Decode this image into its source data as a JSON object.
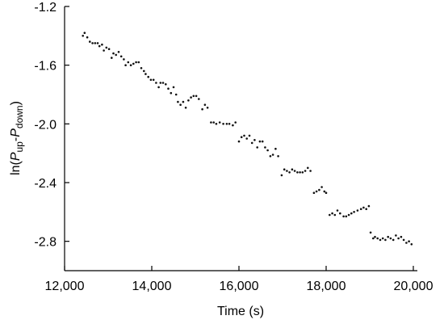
{
  "chart_data": {
    "type": "scatter",
    "title": "",
    "xlabel": "Time (s)",
    "ylabel": {
      "prefix": "ln(",
      "sym1": "P",
      "sub1": "up",
      "dash": "-",
      "sym2": "P",
      "sub2": "down",
      "suffix": ")"
    },
    "xlim": [
      12000,
      20000
    ],
    "ylim": [
      -3.0,
      -1.2
    ],
    "x_ticks": [
      12000,
      14000,
      16000,
      18000,
      20000
    ],
    "x_tick_labels": [
      "12,000",
      "14,000",
      "16,000",
      "18,000",
      "20,000"
    ],
    "y_ticks": [
      -1.2,
      -1.6,
      -2.0,
      -2.4,
      -2.8
    ],
    "y_tick_labels": [
      "-1.2",
      "-1.6",
      "-2.0",
      "-2.4",
      "-2.8"
    ],
    "grid": false,
    "marker_color": "#111111",
    "series": [
      {
        "points": [
          [
            12420,
            -1.4
          ],
          [
            12460,
            -1.38
          ],
          [
            12520,
            -1.41
          ],
          [
            12580,
            -1.44
          ],
          [
            12640,
            -1.45
          ],
          [
            12700,
            -1.45
          ],
          [
            12760,
            -1.45
          ],
          [
            12800,
            -1.47
          ],
          [
            12860,
            -1.46
          ],
          [
            12900,
            -1.5
          ],
          [
            12960,
            -1.48
          ],
          [
            13020,
            -1.49
          ],
          [
            13080,
            -1.55
          ],
          [
            13120,
            -1.52
          ],
          [
            13180,
            -1.53
          ],
          [
            13240,
            -1.51
          ],
          [
            13300,
            -1.54
          ],
          [
            13360,
            -1.56
          ],
          [
            13400,
            -1.6
          ],
          [
            13460,
            -1.58
          ],
          [
            13520,
            -1.6
          ],
          [
            13580,
            -1.59
          ],
          [
            13640,
            -1.58
          ],
          [
            13700,
            -1.58
          ],
          [
            13760,
            -1.62
          ],
          [
            13820,
            -1.64
          ],
          [
            13860,
            -1.66
          ],
          [
            13920,
            -1.68
          ],
          [
            13980,
            -1.7
          ],
          [
            14040,
            -1.7
          ],
          [
            14100,
            -1.72
          ],
          [
            14160,
            -1.75
          ],
          [
            14200,
            -1.72
          ],
          [
            14260,
            -1.72
          ],
          [
            14320,
            -1.73
          ],
          [
            14380,
            -1.76
          ],
          [
            14440,
            -1.79
          ],
          [
            14500,
            -1.75
          ],
          [
            14560,
            -1.8
          ],
          [
            14600,
            -1.85
          ],
          [
            14660,
            -1.87
          ],
          [
            14720,
            -1.85
          ],
          [
            14780,
            -1.89
          ],
          [
            14840,
            -1.84
          ],
          [
            14900,
            -1.82
          ],
          [
            14960,
            -1.81
          ],
          [
            15020,
            -1.81
          ],
          [
            15080,
            -1.83
          ],
          [
            15160,
            -1.9
          ],
          [
            15220,
            -1.87
          ],
          [
            15280,
            -1.89
          ],
          [
            15360,
            -1.99
          ],
          [
            15420,
            -1.99
          ],
          [
            15480,
            -2.0
          ],
          [
            15560,
            -1.99
          ],
          [
            15640,
            -2.0
          ],
          [
            15720,
            -2.0
          ],
          [
            15780,
            -2.0
          ],
          [
            15860,
            -2.01
          ],
          [
            15920,
            -1.99
          ],
          [
            16000,
            -2.12
          ],
          [
            16060,
            -2.09
          ],
          [
            16120,
            -2.08
          ],
          [
            16180,
            -2.1
          ],
          [
            16240,
            -2.08
          ],
          [
            16300,
            -2.13
          ],
          [
            16360,
            -2.11
          ],
          [
            16420,
            -2.16
          ],
          [
            16480,
            -2.12
          ],
          [
            16540,
            -2.12
          ],
          [
            16600,
            -2.16
          ],
          [
            16660,
            -2.18
          ],
          [
            16720,
            -2.22
          ],
          [
            16780,
            -2.21
          ],
          [
            16840,
            -2.17
          ],
          [
            16900,
            -2.22
          ],
          [
            16980,
            -2.35
          ],
          [
            17040,
            -2.31
          ],
          [
            17100,
            -2.32
          ],
          [
            17160,
            -2.33
          ],
          [
            17220,
            -2.31
          ],
          [
            17280,
            -2.32
          ],
          [
            17340,
            -2.33
          ],
          [
            17400,
            -2.33
          ],
          [
            17460,
            -2.33
          ],
          [
            17520,
            -2.32
          ],
          [
            17580,
            -2.3
          ],
          [
            17640,
            -2.32
          ],
          [
            17720,
            -2.47
          ],
          [
            17780,
            -2.46
          ],
          [
            17840,
            -2.45
          ],
          [
            17900,
            -2.43
          ],
          [
            17960,
            -2.46
          ],
          [
            18000,
            -2.47
          ],
          [
            18080,
            -2.62
          ],
          [
            18140,
            -2.61
          ],
          [
            18200,
            -2.62
          ],
          [
            18260,
            -2.59
          ],
          [
            18320,
            -2.61
          ],
          [
            18400,
            -2.63
          ],
          [
            18460,
            -2.63
          ],
          [
            18520,
            -2.62
          ],
          [
            18580,
            -2.61
          ],
          [
            18640,
            -2.6
          ],
          [
            18720,
            -2.59
          ],
          [
            18800,
            -2.58
          ],
          [
            18860,
            -2.57
          ],
          [
            18920,
            -2.58
          ],
          [
            18980,
            -2.56
          ],
          [
            19020,
            -2.74
          ],
          [
            19080,
            -2.78
          ],
          [
            19120,
            -2.77
          ],
          [
            19180,
            -2.78
          ],
          [
            19240,
            -2.79
          ],
          [
            19300,
            -2.78
          ],
          [
            19360,
            -2.79
          ],
          [
            19420,
            -2.77
          ],
          [
            19480,
            -2.78
          ],
          [
            19540,
            -2.79
          ],
          [
            19600,
            -2.76
          ],
          [
            19660,
            -2.78
          ],
          [
            19720,
            -2.77
          ],
          [
            19780,
            -2.79
          ],
          [
            19840,
            -2.81
          ],
          [
            19900,
            -2.8
          ],
          [
            19960,
            -2.82
          ]
        ]
      }
    ]
  }
}
